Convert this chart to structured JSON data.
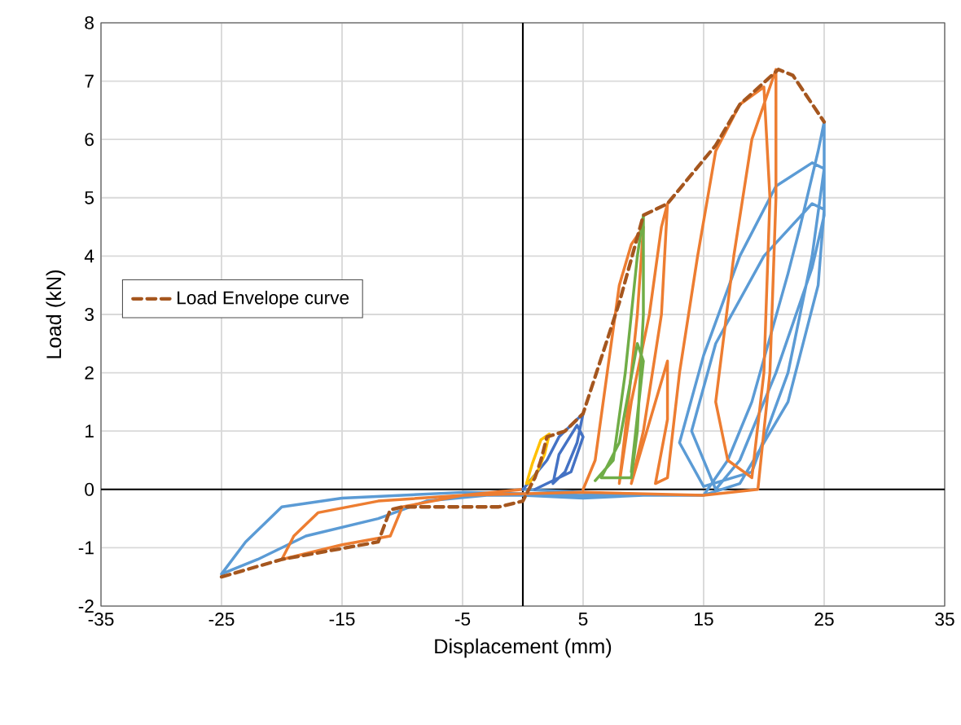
{
  "chart_data": {
    "type": "line",
    "xlabel": "Displacement (mm)",
    "ylabel": "Load (kN)",
    "xlim": [
      -35,
      35
    ],
    "ylim": [
      -2,
      8
    ],
    "xticks": [
      -35,
      -25,
      -15,
      -5,
      5,
      15,
      25,
      35
    ],
    "yticks": [
      -2,
      -1,
      0,
      1,
      2,
      3,
      4,
      5,
      6,
      7,
      8
    ],
    "grid": true,
    "legend": "left",
    "marker": "none",
    "series": [
      {
        "color": "#5b9bd5",
        "x": [
          0,
          10,
          15,
          17,
          19,
          22,
          23,
          24.5,
          25,
          25,
          24,
          22,
          19,
          15,
          13,
          15,
          18,
          21,
          24,
          25,
          25,
          24,
          21,
          18,
          16,
          14,
          16,
          20,
          24,
          25,
          24.5,
          22,
          18,
          15,
          5,
          -5,
          -10,
          -15,
          -20,
          -23,
          -25,
          -22,
          -18,
          -12,
          -8,
          -3,
          0,
          5,
          10,
          15
        ],
        "values": [
          0,
          -0.1,
          -0.1,
          0.5,
          1.5,
          3.7,
          4.5,
          5.8,
          6.3,
          5.5,
          4,
          2,
          0.3,
          0.05,
          0.8,
          2.3,
          4,
          5.2,
          5.6,
          5.5,
          4.7,
          3.8,
          2,
          0.5,
          0,
          1,
          2.5,
          4,
          4.9,
          4.8,
          3.5,
          1.5,
          0.1,
          -0.1,
          -0.1,
          -0.05,
          -0.1,
          -0.15,
          -0.3,
          -0.9,
          -1.45,
          -1.2,
          -0.8,
          -0.5,
          -0.2,
          -0.1,
          -0.1,
          -0.15,
          -0.1,
          -0.1
        ]
      },
      {
        "color": "#ed7d31",
        "x": [
          5,
          6,
          7,
          8,
          9,
          10,
          9.5,
          8.5,
          8,
          9,
          10.5,
          11.5,
          12,
          11.5,
          10,
          9,
          12,
          12,
          11,
          12,
          13,
          14.5,
          16,
          18,
          20,
          20.5,
          20,
          19,
          17,
          16,
          17.5,
          19,
          21,
          21,
          20.5,
          19.5,
          15,
          5,
          -5,
          -10,
          -11,
          -15,
          -20,
          -19,
          -17,
          -12,
          -5,
          0
        ],
        "values": [
          0,
          0.5,
          2,
          3.5,
          4.2,
          4.5,
          3,
          1,
          0.1,
          1.5,
          3,
          4.5,
          4.9,
          3,
          1,
          0.1,
          2.2,
          1.2,
          0.1,
          0.2,
          2,
          4,
          5.8,
          6.6,
          6.9,
          5,
          2,
          0.2,
          0.5,
          1.5,
          4,
          6,
          7.2,
          5,
          2,
          0,
          -0.1,
          -0.05,
          -0.1,
          -0.3,
          -0.8,
          -0.95,
          -1.2,
          -0.8,
          -0.4,
          -0.2,
          -0.1,
          0
        ]
      },
      {
        "color": "#70ad47",
        "x": [
          6,
          7.5,
          8.5,
          9.5,
          10,
          10,
          9.5,
          9,
          7,
          6.5,
          8,
          9.5,
          10,
          9
        ],
        "values": [
          0.15,
          0.5,
          2,
          4,
          4.7,
          3,
          1,
          0.2,
          0.2,
          0.2,
          0.8,
          2.5,
          2.2,
          0.3
        ]
      },
      {
        "color": "#4472c4",
        "x": [
          0,
          2,
          3,
          4,
          5,
          4.5,
          3.5,
          2.5,
          3,
          4.5,
          5,
          4,
          1
        ],
        "values": [
          0,
          0.5,
          0.9,
          1.1,
          1.3,
          0.8,
          0.3,
          0.1,
          0.6,
          1.1,
          0.9,
          0.3,
          0
        ]
      },
      {
        "color": "#ffc000",
        "x": [
          0.3,
          0.8,
          1.5,
          2.2,
          1.8,
          1.2,
          0.5
        ],
        "values": [
          0.1,
          0.45,
          0.85,
          0.95,
          0.6,
          0.3,
          0.1
        ]
      },
      {
        "name": "Load Envelope curve",
        "color": "#a5561e",
        "line_style": "dashed",
        "x": [
          -25,
          -20,
          -12,
          -11,
          -10,
          -2,
          0,
          1,
          1.5,
          2,
          3.5,
          5,
          8,
          10,
          12,
          16,
          18,
          21.2,
          22.4,
          25
        ],
        "values": [
          -1.5,
          -1.2,
          -0.9,
          -0.35,
          -0.3,
          -0.3,
          -0.2,
          0.2,
          0.5,
          0.9,
          1.0,
          1.3,
          3.2,
          4.7,
          4.9,
          5.9,
          6.6,
          7.2,
          7.1,
          6.3
        ]
      }
    ]
  }
}
